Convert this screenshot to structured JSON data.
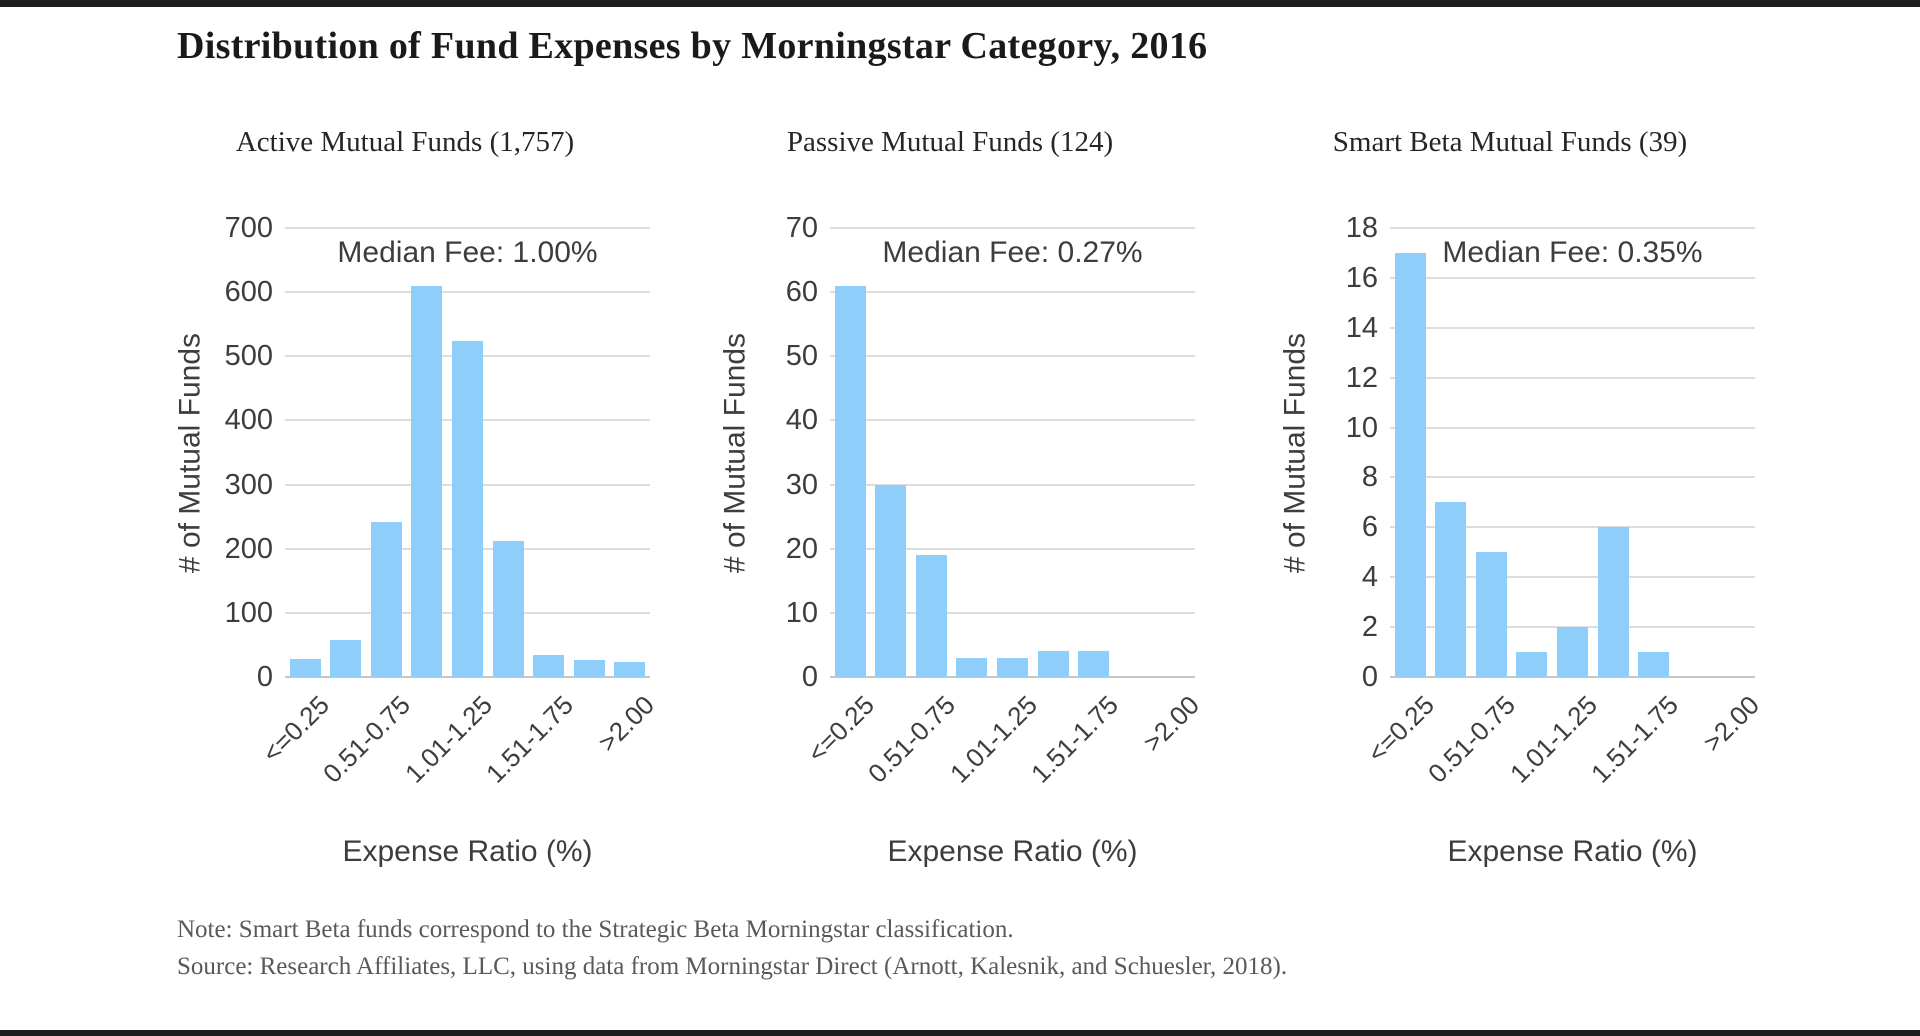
{
  "page": {
    "title": "Distribution of Fund Expenses by Morningstar Category, 2016",
    "note": "Note: Smart Beta funds correspond to the Strategic Beta Morningstar classification.",
    "source": "Source: Research Affiliates, LLC, using data from Morningstar Direct (Arnott, Kalesnik, and Schuesler, 2018)."
  },
  "colors": {
    "bar": "#8fcefa",
    "gridline": "#dddddd",
    "axis_baseline": "#c6c6c6",
    "title_text": "#1a1a1a",
    "chart_text": "#3d3d3d",
    "note_text": "#595959"
  },
  "chart_data": [
    {
      "type": "bar",
      "title": "Active Mutual Funds (1,757)",
      "annotation": "Median Fee: 1.00%",
      "xlabel": "Expense Ratio (%)",
      "ylabel": "# of Mutual Funds",
      "x_tick_labels": [
        "<=0.25",
        "",
        "0.51-0.75",
        "",
        "1.01-1.25",
        "",
        "1.51-1.75",
        "",
        ">2.00"
      ],
      "values": [
        28,
        58,
        241,
        610,
        524,
        212,
        35,
        26,
        23
      ],
      "ylim": [
        0,
        700
      ],
      "ytick_step": 100,
      "grid": "on",
      "legend": "none"
    },
    {
      "type": "bar",
      "title": "Passive Mutual Funds (124)",
      "annotation": "Median Fee: 0.27%",
      "xlabel": "Expense Ratio (%)",
      "ylabel": "# of Mutual Funds",
      "x_tick_labels": [
        "<=0.25",
        "",
        "0.51-0.75",
        "",
        "1.01-1.25",
        "",
        "1.51-1.75",
        "",
        ">2.00"
      ],
      "values": [
        61,
        30,
        19,
        3,
        3,
        4,
        4,
        0,
        0
      ],
      "ylim": [
        0,
        70
      ],
      "ytick_step": 10,
      "grid": "on",
      "legend": "none"
    },
    {
      "type": "bar",
      "title": "Smart Beta Mutual Funds (39)",
      "annotation": "Median Fee: 0.35%",
      "xlabel": "Expense Ratio (%)",
      "ylabel": "# of Mutual Funds",
      "x_tick_labels": [
        "<=0.25",
        "",
        "0.51-0.75",
        "",
        "1.01-1.25",
        "",
        "1.51-1.75",
        "",
        ">2.00"
      ],
      "values": [
        17,
        7,
        5,
        1,
        2,
        6,
        1,
        0,
        0
      ],
      "ylim": [
        0,
        18
      ],
      "ytick_step": 2,
      "grid": "on",
      "legend": "none"
    }
  ]
}
